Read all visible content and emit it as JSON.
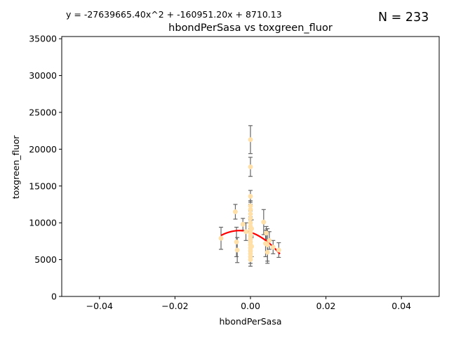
{
  "chart_data": {
    "type": "scatter",
    "title": "hbondPerSasa vs toxgreen_fluor",
    "xlabel": "hbondPerSasa",
    "ylabel": "toxgreen_fluor",
    "equation": "y = -27639665.40x^2 + -160951.20x + 8710.13",
    "n_label": "N = 233",
    "xlim": [
      -0.05,
      0.05
    ],
    "ylim": [
      0,
      35300
    ],
    "x_ticks": [
      -0.04,
      -0.02,
      0.0,
      0.02,
      0.04
    ],
    "x_tick_labels": [
      "−0.04",
      "−0.02",
      "0.00",
      "0.02",
      "0.04"
    ],
    "y_ticks": [
      0,
      5000,
      10000,
      15000,
      20000,
      25000,
      30000,
      35000
    ],
    "y_tick_labels": [
      "0",
      "5000",
      "10000",
      "15000",
      "20000",
      "25000",
      "30000",
      "35000"
    ],
    "grid": false,
    "colors": {
      "points": "#ffe0a8",
      "error_bars": "#666666",
      "fit_line": "#ff0000",
      "axes": "#000000"
    },
    "points": [
      {
        "x": -0.0078,
        "y": 7900,
        "err": 1500
      },
      {
        "x": -0.004,
        "y": 11500,
        "err": 1000
      },
      {
        "x": -0.0037,
        "y": 7400,
        "err": 2000
      },
      {
        "x": -0.0035,
        "y": 6300,
        "err": 1700
      },
      {
        "x": -0.002,
        "y": 9800,
        "err": 800
      },
      {
        "x": -0.0012,
        "y": 8800,
        "err": 1200
      },
      {
        "x": 0.0,
        "y": 21300,
        "err": 1900
      },
      {
        "x": 0.0,
        "y": 17600,
        "err": 1300
      },
      {
        "x": 0.0,
        "y": 13600,
        "err": 800
      },
      {
        "x": 0.0,
        "y": 12300,
        "err": 700
      },
      {
        "x": 0.0,
        "y": 11800,
        "err": 700
      },
      {
        "x": 0.0,
        "y": 11200,
        "err": 700
      },
      {
        "x": 0.0,
        "y": 10600,
        "err": 700
      },
      {
        "x": 0.0,
        "y": 10000,
        "err": 800
      },
      {
        "x": 0.0,
        "y": 9500,
        "err": 900
      },
      {
        "x": 0.0,
        "y": 9000,
        "err": 900
      },
      {
        "x": 0.0,
        "y": 8600,
        "err": 900
      },
      {
        "x": 0.0,
        "y": 8200,
        "err": 900
      },
      {
        "x": 0.0,
        "y": 7800,
        "err": 900
      },
      {
        "x": 0.0,
        "y": 7400,
        "err": 900
      },
      {
        "x": 0.0,
        "y": 7000,
        "err": 900
      },
      {
        "x": 0.0,
        "y": 6600,
        "err": 900
      },
      {
        "x": 0.0,
        "y": 6200,
        "err": 900
      },
      {
        "x": 0.0,
        "y": 5800,
        "err": 900
      },
      {
        "x": 0.0,
        "y": 5400,
        "err": 900
      },
      {
        "x": 0.0,
        "y": 5000,
        "err": 900
      },
      {
        "x": 0.0003,
        "y": 9200,
        "err": 1200
      },
      {
        "x": 0.0003,
        "y": 6800,
        "err": 1400
      },
      {
        "x": 0.0035,
        "y": 10100,
        "err": 1700
      },
      {
        "x": 0.004,
        "y": 7200,
        "err": 1800
      },
      {
        "x": 0.0042,
        "y": 8600,
        "err": 900
      },
      {
        "x": 0.0045,
        "y": 7000,
        "err": 2200
      },
      {
        "x": 0.0045,
        "y": 6000,
        "err": 1500
      },
      {
        "x": 0.005,
        "y": 7600,
        "err": 1200
      },
      {
        "x": 0.006,
        "y": 6700,
        "err": 900
      },
      {
        "x": 0.0075,
        "y": 6300,
        "err": 1000
      }
    ],
    "fit": {
      "a": -27639665.4,
      "b": -160951.2,
      "c": 8710.13,
      "x_range": [
        -0.0078,
        0.0078
      ]
    }
  }
}
